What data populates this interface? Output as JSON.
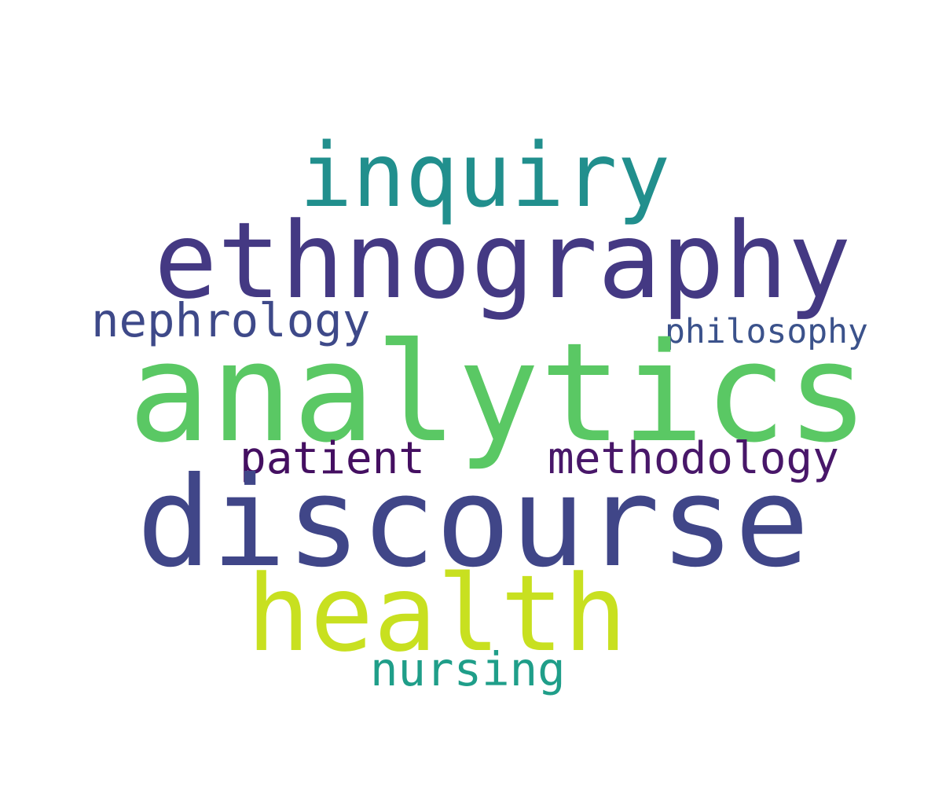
{
  "words": [
    {
      "key": "inquiry",
      "text": "inquiry",
      "color": "#218f8d"
    },
    {
      "key": "ethnography",
      "text": "ethnography",
      "color": "#443983"
    },
    {
      "key": "nephrology",
      "text": "nephrology",
      "color": "#3e4989"
    },
    {
      "key": "philosophy",
      "text": "philosophy",
      "color": "#3b528b"
    },
    {
      "key": "analytics",
      "text": "analytics",
      "color": "#5ac864"
    },
    {
      "key": "patient",
      "text": "patient",
      "color": "#440f61"
    },
    {
      "key": "methodology",
      "text": "methodology",
      "color": "#481769"
    },
    {
      "key": "discourse",
      "text": "discourse",
      "color": "#404688"
    },
    {
      "key": "health",
      "text": "health",
      "color": "#c8e020"
    },
    {
      "key": "nursing",
      "text": "nursing",
      "color": "#1f9e89"
    }
  ]
}
